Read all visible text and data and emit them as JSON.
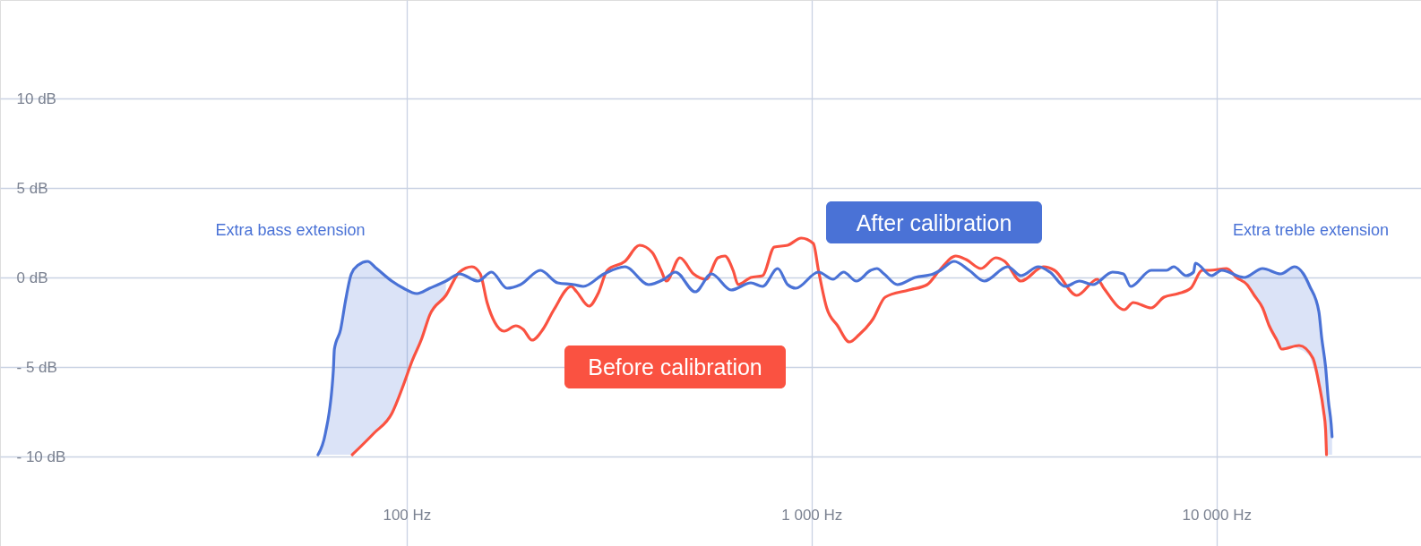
{
  "chart_data": {
    "type": "line",
    "log": "x",
    "xlim": [
      9.9,
      32000
    ],
    "ylim": [
      -15,
      15.5
    ],
    "xticks": [
      {
        "value": 100,
        "label": "100 Hz"
      },
      {
        "value": 1000,
        "label": "1 000 Hz"
      },
      {
        "value": 10000,
        "label": "10 000 Hz"
      }
    ],
    "yticks": [
      {
        "value": 10,
        "label": "10 dB"
      },
      {
        "value": 5,
        "label": "5 dB"
      },
      {
        "value": 0,
        "label": "0 dB"
      },
      {
        "value": -5,
        "label": "- 5 dB"
      },
      {
        "value": -10,
        "label": "- 10 dB"
      }
    ],
    "grid": true,
    "line_style": "solid",
    "annotations": [
      "Extra bass extension",
      "Extra treble extension"
    ],
    "series": [
      {
        "name": "Before calibration",
        "color": "#fa5241",
        "x": [
          73.4,
          83.0,
          91.9,
          98.2,
          103,
          109,
          114,
          125,
          135,
          145,
          152,
          158,
          165,
          174,
          186,
          194,
          204,
          217,
          231,
          255,
          263,
          282,
          297,
          313,
          346,
          376,
          404,
          425,
          438,
          473,
          511,
          549,
          587,
          611,
          640,
          659,
          708,
          757,
          809,
          873,
          943,
          1010,
          1040,
          1090,
          1160,
          1240,
          1310,
          1400,
          1420,
          1520,
          1740,
          1930,
          2070,
          2270,
          2410,
          2620,
          2850,
          3000,
          3290,
          3740,
          3980,
          4520,
          5080,
          5270,
          5920,
          6230,
          6900,
          7420,
          8040,
          8640,
          9230,
          9620,
          10600,
          11200,
          11900,
          12400,
          13000,
          13500,
          14100,
          14500,
          16000,
          17300,
          17900,
          18400,
          18600,
          18700
        ],
        "values": [
          -9.9,
          -8.7,
          -7.6,
          -6.0,
          -4.7,
          -3.4,
          -2.1,
          -1.0,
          0.3,
          0.6,
          0.2,
          -1.4,
          -2.5,
          -3.0,
          -2.7,
          -2.9,
          -3.5,
          -2.9,
          -1.8,
          -0.5,
          -0.8,
          -1.6,
          -0.9,
          0.4,
          0.9,
          1.8,
          1.4,
          0.4,
          -0.2,
          1.1,
          0.2,
          -0.1,
          1.1,
          1.2,
          0.4,
          -0.4,
          0,
          0.1,
          1.7,
          1.8,
          2.2,
          1.9,
          0.4,
          -1.7,
          -2.7,
          -3.6,
          -3.2,
          -2.5,
          -2.3,
          -1.1,
          -0.7,
          -0.4,
          0.4,
          1.2,
          1.0,
          0.5,
          1.1,
          0.9,
          -0.2,
          0.6,
          0.4,
          -1.0,
          -0.1,
          -0.6,
          -1.8,
          -1.4,
          -1.7,
          -1.1,
          -0.9,
          -0.6,
          0.4,
          0.4,
          0.5,
          0,
          -0.4,
          -1.0,
          -1.7,
          -2.7,
          -3.5,
          -4.0,
          -3.8,
          -4.5,
          -5.9,
          -7.5,
          -8.5,
          -9.9
        ]
      },
      {
        "name": "After calibration",
        "color": "#4a72d6",
        "x": [
          60.4,
          63.0,
          65.9,
          66.3,
          68.7,
          70.5,
          73.0,
          76.0,
          80.0,
          84.3,
          91.9,
          98.2,
          106,
          114,
          125,
          135,
          150,
          162,
          177,
          191,
          214,
          236,
          259,
          273,
          307,
          346,
          396,
          432,
          461,
          516,
          566,
          633,
          708,
          757,
          825,
          873,
          914,
          1040,
          1130,
          1200,
          1290,
          1400,
          1450,
          1510,
          1630,
          1800,
          2000,
          2080,
          2250,
          2450,
          2670,
          3050,
          3290,
          3630,
          3880,
          4230,
          4590,
          4950,
          5540,
          5890,
          6140,
          6900,
          7530,
          7840,
          8420,
          8780,
          8870,
          9720,
          10300,
          11700,
          13000,
          14400,
          15600,
          16400,
          17000,
          17900,
          18200,
          18600,
          18900,
          19200,
          19300
        ],
        "values": [
          -9.9,
          -8.7,
          -5.2,
          -4.0,
          -2.9,
          -1.4,
          0.2,
          0.7,
          0.9,
          0.5,
          -0.2,
          -0.6,
          -0.9,
          -0.6,
          -0.2,
          0.2,
          -0.2,
          0.3,
          -0.6,
          -0.4,
          0.4,
          -0.3,
          -0.4,
          -0.5,
          0.2,
          0.6,
          -0.4,
          -0.1,
          0.3,
          -0.8,
          0.2,
          -0.7,
          -0.3,
          -0.5,
          0.5,
          -0.4,
          -0.6,
          0.3,
          -0.1,
          0.3,
          -0.2,
          0.4,
          0.5,
          0.2,
          -0.4,
          0,
          0.2,
          0.4,
          0.9,
          0.4,
          -0.2,
          0.6,
          0.1,
          0.6,
          0.3,
          -0.5,
          -0.2,
          -0.4,
          0.3,
          0.2,
          -0.5,
          0.4,
          0.4,
          0.6,
          0.1,
          0.3,
          0.8,
          0.1,
          0.4,
          0,
          0.5,
          0.2,
          0.6,
          0.2,
          -0.5,
          -1.9,
          -3.4,
          -5.0,
          -6.9,
          -8.2,
          -8.9
        ],
        "upper": [
          -9.9,
          -8.7,
          -5.2,
          -4.0,
          -2.9,
          -1.4,
          0.2,
          0.7,
          0.9,
          0.5,
          -0.2,
          -0.6,
          -0.9,
          -0.6,
          -0.2,
          null,
          null,
          null,
          null,
          null,
          null,
          null,
          null,
          null,
          null,
          null,
          null,
          null,
          null,
          null,
          null,
          null,
          null,
          null,
          null,
          null,
          null,
          null,
          null,
          null,
          null,
          null,
          null,
          null,
          null,
          null,
          null,
          null,
          null,
          null,
          null,
          null,
          null,
          null,
          null,
          null,
          null,
          null,
          null,
          null,
          null,
          null,
          null,
          null,
          null,
          null,
          null,
          null,
          null,
          0,
          0.5,
          0.2,
          0.6,
          0.2,
          -0.5,
          -1.9,
          -3.4,
          -5.0,
          -6.9,
          -8.2,
          -8.9
        ],
        "lower": [
          -9.9,
          -9.9,
          -9.9,
          -9.9,
          -9.9,
          -9.9,
          -9.9,
          -9.5,
          -9.1,
          -8.5,
          -7.6,
          -6.0,
          -4.0,
          -2.1,
          -1.0,
          null,
          null,
          null,
          null,
          null,
          null,
          null,
          null,
          null,
          null,
          null,
          null,
          null,
          null,
          null,
          null,
          null,
          null,
          null,
          null,
          null,
          null,
          null,
          null,
          null,
          null,
          null,
          null,
          null,
          null,
          null,
          null,
          null,
          null,
          null,
          null,
          null,
          null,
          null,
          null,
          null,
          null,
          null,
          null,
          null,
          null,
          null,
          null,
          null,
          null,
          null,
          null,
          null,
          null,
          -0.2,
          -1.7,
          -3.9,
          -3.9,
          -4.1,
          -4.4,
          -5.9,
          -6.7,
          -8.5,
          -9.9,
          -9.9,
          -9.9
        ]
      }
    ]
  }
}
